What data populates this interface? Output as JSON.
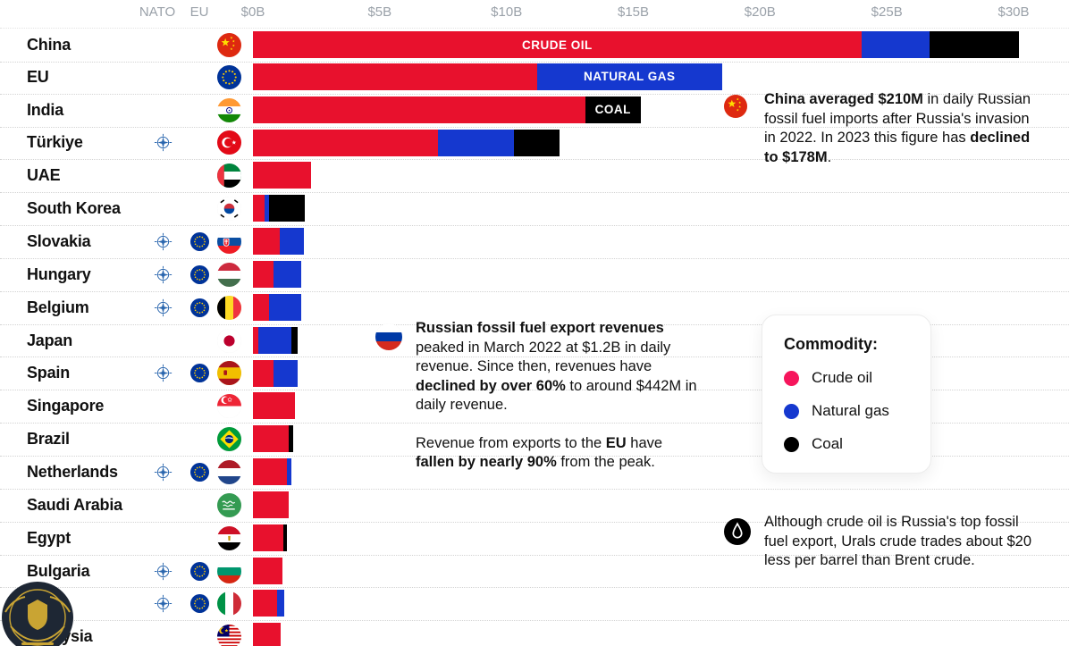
{
  "headers": {
    "nato": "NATO",
    "eu": "EU"
  },
  "chart_data": {
    "type": "bar",
    "subtype": "horizontal-stacked",
    "unit": "USD billions",
    "xlim": [
      0,
      30
    ],
    "x_tick_labels": [
      "$0B",
      "$5B",
      "$10B",
      "$15B",
      "$20B",
      "$25B",
      "$30B"
    ],
    "x_tick_values": [
      0,
      5,
      10,
      15,
      20,
      25,
      30
    ],
    "grid": "dotted-horizontal-row-separators",
    "series": [
      {
        "key": "crude",
        "name": "Crude oil",
        "color": "#e8112d"
      },
      {
        "key": "gas",
        "name": "Natural gas",
        "color": "#1538cf"
      },
      {
        "key": "coal",
        "name": "Coal",
        "color": "#000000"
      }
    ],
    "rows": [
      {
        "country": "China",
        "flag": "china",
        "nato": false,
        "eu": false,
        "values": {
          "crude": 24.0,
          "gas": 2.7,
          "coal": 3.5
        },
        "segment_labels": {
          "crude": "CRUDE OIL"
        }
      },
      {
        "country": "EU",
        "flag": "eu",
        "nato": false,
        "eu": false,
        "values": {
          "crude": 11.2,
          "gas": 7.3,
          "coal": 0
        },
        "segment_labels": {
          "gas": "NATURAL GAS"
        }
      },
      {
        "country": "India",
        "flag": "india",
        "nato": false,
        "eu": false,
        "values": {
          "crude": 13.1,
          "gas": 0,
          "coal": 2.2
        },
        "segment_labels": {
          "coal": "COAL"
        }
      },
      {
        "country": "Türkiye",
        "flag": "turkiye",
        "nato": true,
        "eu": false,
        "values": {
          "crude": 7.3,
          "gas": 3.0,
          "coal": 1.8
        }
      },
      {
        "country": "UAE",
        "flag": "uae",
        "nato": false,
        "eu": false,
        "values": {
          "crude": 2.3,
          "gas": 0,
          "coal": 0
        }
      },
      {
        "country": "South Korea",
        "flag": "south-korea",
        "nato": false,
        "eu": false,
        "values": {
          "crude": 0.45,
          "gas": 0.2,
          "coal": 1.4
        }
      },
      {
        "country": "Slovakia",
        "flag": "slovakia",
        "nato": true,
        "eu": true,
        "values": {
          "crude": 1.05,
          "gas": 0.95,
          "coal": 0
        }
      },
      {
        "country": "Hungary",
        "flag": "hungary",
        "nato": true,
        "eu": true,
        "values": {
          "crude": 0.8,
          "gas": 1.1,
          "coal": 0
        }
      },
      {
        "country": "Belgium",
        "flag": "belgium",
        "nato": true,
        "eu": true,
        "values": {
          "crude": 0.65,
          "gas": 1.25,
          "coal": 0
        }
      },
      {
        "country": "Japan",
        "flag": "japan",
        "nato": false,
        "eu": false,
        "values": {
          "crude": 0.2,
          "gas": 1.3,
          "coal": 0.25
        }
      },
      {
        "country": "Spain",
        "flag": "spain",
        "nato": true,
        "eu": true,
        "values": {
          "crude": 0.8,
          "gas": 0.95,
          "coal": 0
        }
      },
      {
        "country": "Singapore",
        "flag": "singapore",
        "nato": false,
        "eu": false,
        "values": {
          "crude": 1.65,
          "gas": 0,
          "coal": 0
        }
      },
      {
        "country": "Brazil",
        "flag": "brazil",
        "nato": false,
        "eu": false,
        "values": {
          "crude": 1.4,
          "gas": 0,
          "coal": 0.2
        }
      },
      {
        "country": "Netherlands",
        "flag": "netherlands",
        "nato": true,
        "eu": true,
        "values": {
          "crude": 1.35,
          "gas": 0.15,
          "coal": 0
        }
      },
      {
        "country": "Saudi Arabia",
        "flag": "saudi-arabia",
        "nato": false,
        "eu": false,
        "values": {
          "crude": 1.4,
          "gas": 0,
          "coal": 0
        }
      },
      {
        "country": "Egypt",
        "flag": "egypt",
        "nato": false,
        "eu": false,
        "values": {
          "crude": 1.2,
          "gas": 0,
          "coal": 0.15
        }
      },
      {
        "country": "Bulgaria",
        "flag": "bulgaria",
        "nato": true,
        "eu": true,
        "values": {
          "crude": 1.15,
          "gas": 0,
          "coal": 0
        }
      },
      {
        "country": "Italy",
        "flag": "italy",
        "nato": true,
        "eu": true,
        "values": {
          "crude": 0.95,
          "gas": 0.3,
          "coal": 0
        }
      },
      {
        "country": "Malaysia",
        "flag": "malaysia",
        "nato": false,
        "eu": false,
        "values": {
          "crude": 1.1,
          "gas": 0,
          "coal": 0
        }
      }
    ]
  },
  "annotations": {
    "china": {
      "icon": "china-flag",
      "segments": [
        {
          "t": "China averaged $210M",
          "b": true
        },
        {
          "t": " in daily Russian fossil fuel imports after Russia's invasion in 2022. In 2023 this figure has ",
          "b": false
        },
        {
          "t": "declined to $178M",
          "b": true
        },
        {
          "t": ".",
          "b": false
        }
      ]
    },
    "russia": {
      "icon": "russia-flag",
      "paragraphs": [
        [
          {
            "t": "Russian fossil fuel export revenues",
            "b": true
          },
          {
            "t": " peaked in March 2022 at $1.2B in daily revenue. Since then, revenues have ",
            "b": false
          },
          {
            "t": "declined by over 60%",
            "b": true
          },
          {
            "t": " to around $442M in daily revenue.",
            "b": false
          }
        ],
        [
          {
            "t": "Revenue from exports to the ",
            "b": false
          },
          {
            "t": "EU",
            "b": true
          },
          {
            "t": " have ",
            "b": false
          },
          {
            "t": "fallen by nearly 90%",
            "b": true
          },
          {
            "t": " from the peak.",
            "b": false
          }
        ]
      ]
    },
    "oil": {
      "icon": "oil-drop",
      "segments": [
        {
          "t": "Although crude oil is Russia's top fossil fuel export, Urals crude trades about $20 less per barrel than Brent crude.",
          "b": false
        }
      ]
    }
  },
  "legend": {
    "title": "Commodity:",
    "items": [
      {
        "label": "Crude oil",
        "color": "#f6155c"
      },
      {
        "label": "Natural gas",
        "color": "#1538cf"
      },
      {
        "label": "Coal",
        "color": "#000000"
      }
    ]
  }
}
